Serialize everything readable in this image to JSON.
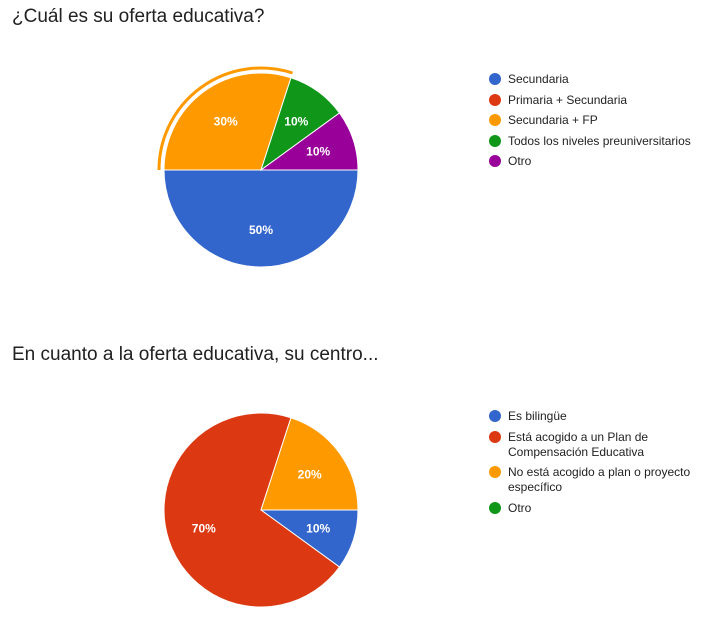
{
  "chart_data": [
    {
      "type": "pie",
      "title": "¿Cuál es su oferta educativa?",
      "categories": [
        "Secundaria",
        "Primaria + Secundaria",
        "Secundaria + FP",
        "Todos los niveles preuniversitarios",
        "Otro"
      ],
      "values": [
        50,
        0,
        30,
        10,
        10
      ],
      "data_labels": [
        "50%",
        "",
        "30%",
        "10%",
        "10%"
      ],
      "colors": [
        "#3366cc",
        "#dc3912",
        "#ff9900",
        "#109618",
        "#990099"
      ],
      "highlighted_slice": "Secundaria + FP",
      "legend_position": "right"
    },
    {
      "type": "pie",
      "title": "En cuanto a la oferta educativa, su centro...",
      "categories": [
        "Es bilingüe",
        "Está acogido a un Plan de Compensación Educativa",
        "No está acogido a plan o proyecto específico",
        "Otro"
      ],
      "legend_lines": [
        [
          "Es bilingüe"
        ],
        [
          "Está acogido a un Plan de",
          "Compensación Educativa"
        ],
        [
          "No está acogido a plan o proyecto",
          "específico"
        ],
        [
          "Otro"
        ]
      ],
      "values": [
        10,
        70,
        20,
        0
      ],
      "data_labels": [
        "10%",
        "70%",
        "20%",
        ""
      ],
      "colors": [
        "#3366cc",
        "#dc3912",
        "#ff9900",
        "#109618"
      ],
      "legend_position": "right"
    }
  ]
}
